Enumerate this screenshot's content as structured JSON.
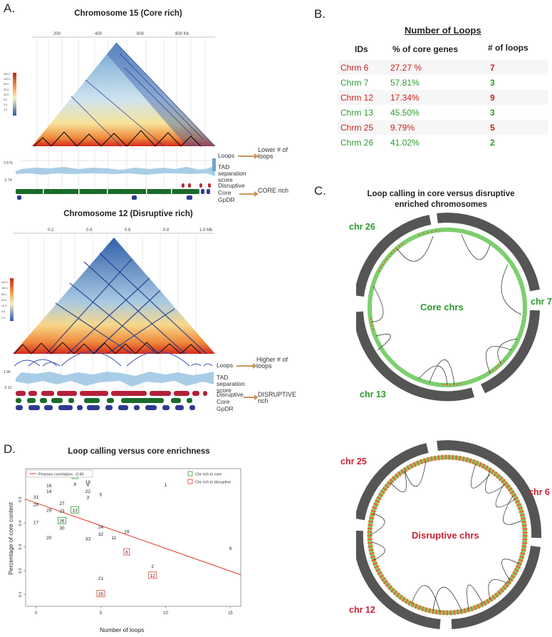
{
  "panel_a": {
    "label": "A.",
    "top": {
      "title": "Chromosome 15 (Core rich)",
      "axis_ticks": [
        "200",
        "400",
        "600",
        "800 Kb"
      ],
      "scale_ticks": [
        "200.0",
        "100.0",
        "50.0",
        "20.0",
        "10.0",
        "5.0",
        "2.0",
        "1.0"
      ],
      "tad_max": "2.579",
      "tad_min": "-2.74",
      "track_loops": "Loops",
      "track_tad": "TAD separation score",
      "track_disruptive": "Disruptive",
      "track_core": "Core",
      "track_gpdr": "GpDR",
      "note_loops": "Lower # of loops",
      "note_type": "CORE rich"
    },
    "bottom": {
      "title": "Chromosome 12 (Disruptive rich)",
      "axis_ticks": [
        "0.2",
        "0.4",
        "0.6",
        "0.8",
        "1.0 Mb"
      ],
      "scale_ticks": [
        "200.0",
        "100.0",
        "50.0",
        "20.0",
        "10.0",
        "5.0",
        "2.0"
      ],
      "tad_max": "1.96",
      "tad_min": "-2.12",
      "track_loops": "Loops",
      "track_tad": "TAD separation score",
      "track_disruptive": "Disruptive",
      "track_core": "Core",
      "track_gpdr": "GpDR",
      "note_loops": "Higher # of loops",
      "note_type": "DISRUPTIVE rich"
    }
  },
  "panel_b": {
    "label": "B.",
    "title": "Number of Loops",
    "headers": [
      "IDs",
      "% of core genes",
      "# of loops"
    ],
    "rows": [
      {
        "id": "Chrm 6",
        "pct": "27.27 %",
        "loops": "7",
        "color": "#cc2222"
      },
      {
        "id": "Chrm 7",
        "pct": "57.81%",
        "loops": "3",
        "color": "#2c9a2c"
      },
      {
        "id": "Chrm 12",
        "pct": "17.34%",
        "loops": "9",
        "color": "#cc2222"
      },
      {
        "id": "Chrm 13",
        "pct": "45.50%",
        "loops": "3",
        "color": "#2c9a2c"
      },
      {
        "id": "Chrm 25",
        "pct": "9.79%",
        "loops": "5",
        "color": "#cc2222"
      },
      {
        "id": "Chrm 26",
        "pct": "41.02%",
        "loops": "2",
        "color": "#2c9a2c"
      }
    ]
  },
  "panel_c": {
    "label": "C.",
    "title_line1": "Loop calling in core versus disruptive",
    "title_line2": "enriched chromosomes",
    "core": {
      "center": "Core chrs",
      "chr_a": "chr 26",
      "chr_b": "chr 7",
      "chr_c": "chr 13"
    },
    "disruptive": {
      "center": "Disruptive chrs",
      "chr_a": "chr 25",
      "chr_b": "chr 6",
      "chr_c": "chr 12"
    },
    "colors": {
      "core": "#2c9a2c",
      "disruptive": "#cc2233",
      "ring": "#555555",
      "green_track": "#7ccf6e",
      "orange_track": "#ee6a33"
    }
  },
  "panel_d": {
    "label": "D.",
    "legend_correlation": "Pearson correlation: -0.49",
    "legend_core": "Chr rich in core",
    "legend_disruptive": "Chr rich in disruptive",
    "chart_data": {
      "type": "scatter",
      "title": "Loop calling versus core enrichness",
      "xlabel": "Number of loops",
      "ylabel": "Percentage of core content",
      "xlim": [
        -0.8,
        15.8
      ],
      "ylim": [
        0.05,
        0.63
      ],
      "xticks": [
        0,
        5,
        10,
        15
      ],
      "yticks": [
        0.1,
        0.2,
        0.3,
        0.4,
        0.5
      ],
      "ytick_labels": [
        "0.1",
        "0.2",
        "0.3",
        "0.4",
        "0.5"
      ],
      "trendline": {
        "x1": -0.8,
        "y1": 0.501,
        "x2": 15.8,
        "y2": 0.183
      },
      "points": [
        {
          "label": "31",
          "x": 0,
          "y": 0.512,
          "box": "none"
        },
        {
          "label": "26",
          "x": 0,
          "y": 0.48,
          "box": "none"
        },
        {
          "label": "17",
          "x": 0,
          "y": 0.405,
          "box": "none"
        },
        {
          "label": "16",
          "x": 1,
          "y": 0.56,
          "box": "none"
        },
        {
          "label": "14",
          "x": 1,
          "y": 0.535,
          "box": "none"
        },
        {
          "label": "29",
          "x": 1,
          "y": 0.455,
          "box": "none"
        },
        {
          "label": "20",
          "x": 1,
          "y": 0.34,
          "box": "none"
        },
        {
          "label": "27",
          "x": 2,
          "y": 0.484,
          "box": "none"
        },
        {
          "label": "23",
          "x": 2,
          "y": 0.452,
          "box": "none"
        },
        {
          "label": "26",
          "x": 2,
          "y": 0.41,
          "box": "core"
        },
        {
          "label": "30",
          "x": 2,
          "y": 0.38,
          "box": "none"
        },
        {
          "label": "7",
          "x": 3,
          "y": 0.6,
          "box": "core"
        },
        {
          "label": "8",
          "x": 3,
          "y": 0.565,
          "box": "none"
        },
        {
          "label": "13",
          "x": 3,
          "y": 0.455,
          "box": "core"
        },
        {
          "label": "18",
          "x": 4,
          "y": 0.575,
          "box": "none"
        },
        {
          "label": "4",
          "x": 4,
          "y": 0.563,
          "box": "none"
        },
        {
          "label": "22",
          "x": 4,
          "y": 0.535,
          "box": "none"
        },
        {
          "label": "3",
          "x": 4,
          "y": 0.51,
          "box": "none"
        },
        {
          "label": "33",
          "x": 4,
          "y": 0.335,
          "box": "none"
        },
        {
          "label": "5",
          "x": 5,
          "y": 0.522,
          "box": "none"
        },
        {
          "label": "24",
          "x": 5,
          "y": 0.385,
          "box": "none"
        },
        {
          "label": "32",
          "x": 5,
          "y": 0.355,
          "box": "none"
        },
        {
          "label": "21",
          "x": 5,
          "y": 0.168,
          "box": "none"
        },
        {
          "label": "25",
          "x": 5,
          "y": 0.102,
          "box": "disruptive"
        },
        {
          "label": "11",
          "x": 6,
          "y": 0.34,
          "box": "none"
        },
        {
          "label": "6",
          "x": 7,
          "y": 0.278,
          "box": "disruptive"
        },
        {
          "label": "19",
          "x": 7,
          "y": 0.366,
          "box": "none"
        },
        {
          "label": "1",
          "x": 10,
          "y": 0.563,
          "box": "none"
        },
        {
          "label": "2",
          "x": 9,
          "y": 0.22,
          "box": "none"
        },
        {
          "label": "12",
          "x": 9,
          "y": 0.18,
          "box": "disruptive"
        },
        {
          "label": "9",
          "x": 15,
          "y": 0.295,
          "box": "none"
        }
      ]
    }
  }
}
